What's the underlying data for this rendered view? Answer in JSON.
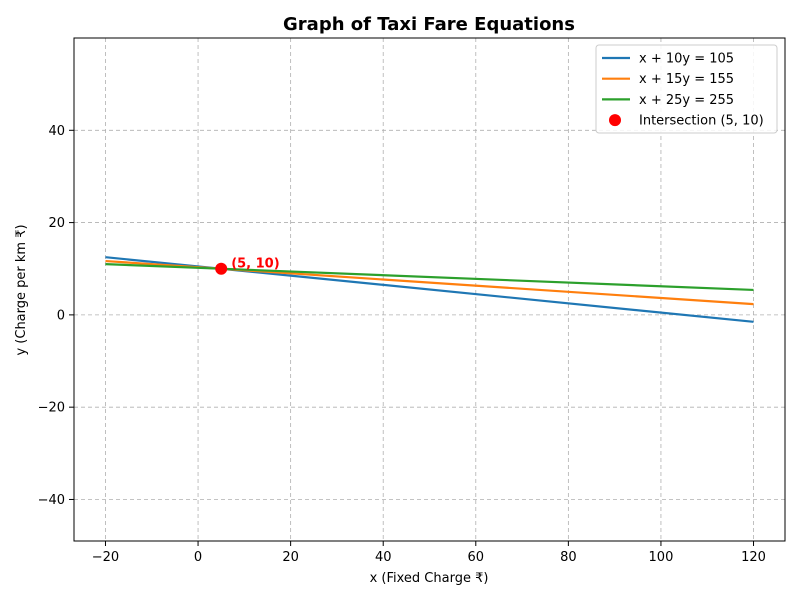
{
  "chart_data": {
    "type": "line",
    "title": "Graph of Taxi Fare Equations",
    "xlabel": "x (Fixed Charge ₹)",
    "ylabel": "y (Charge per km ₹)",
    "xlim": [
      -26.8,
      126.8
    ],
    "ylim": [
      -49,
      60
    ],
    "xticks": [
      -20,
      0,
      20,
      40,
      60,
      80,
      100,
      120
    ],
    "yticks": [
      -40,
      -20,
      0,
      20,
      40
    ],
    "xtick_labels": [
      "−20",
      "0",
      "20",
      "40",
      "60",
      "80",
      "100",
      "120"
    ],
    "ytick_labels": [
      "−40",
      "−20",
      "0",
      "20",
      "40"
    ],
    "grid": true,
    "legend_position": "top-right",
    "series": [
      {
        "name": "x + 10y = 105",
        "color": "#1f77b4",
        "x": [
          -20,
          120
        ],
        "y": [
          12.5,
          -1.5
        ]
      },
      {
        "name": "x + 15y = 155",
        "color": "#ff7f0e",
        "x": [
          -20,
          120
        ],
        "y": [
          11.667,
          2.333
        ]
      },
      {
        "name": "x + 25y = 255",
        "color": "#2ca02c",
        "x": [
          -20,
          120
        ],
        "y": [
          11.0,
          5.4
        ]
      }
    ],
    "points": [
      {
        "name": "Intersection (5, 10)",
        "color": "#ff0000",
        "x": 5,
        "y": 10
      }
    ],
    "annotations": [
      {
        "text": "(5, 10)",
        "x": 5,
        "y": 10,
        "color": "#ff0000"
      }
    ]
  }
}
